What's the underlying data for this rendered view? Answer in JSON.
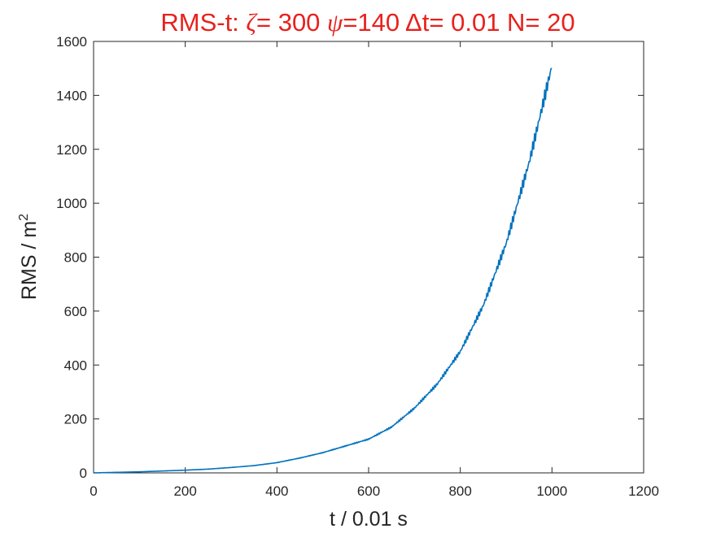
{
  "chart_data": {
    "type": "line",
    "title_parts": [
      {
        "text": "RMS-t:  ",
        "style": "normal"
      },
      {
        "text": "ζ",
        "style": "greek"
      },
      {
        "text": "= 300 ",
        "style": "normal"
      },
      {
        "text": "ψ",
        "style": "greek"
      },
      {
        "text": "=140 ",
        "style": "normal"
      },
      {
        "text": "Δ",
        "style": "normal"
      },
      {
        "text": "t= 0.01 N= 20",
        "style": "normal"
      }
    ],
    "xlabel": "t / 0.01 s",
    "ylabel_base": "RMS / m",
    "ylabel_sup": "2",
    "xlim": [
      0,
      1200
    ],
    "ylim": [
      0,
      1600
    ],
    "xticks": [
      0,
      200,
      400,
      600,
      800,
      1000,
      1200
    ],
    "yticks": [
      0,
      200,
      400,
      600,
      800,
      1000,
      1200,
      1400,
      1600
    ],
    "grid": false,
    "colors": {
      "title": "#e8211d",
      "series": "#0072bd",
      "axes": "#262626"
    },
    "series": [
      {
        "x": [
          0,
          50,
          100,
          150,
          200,
          250,
          300,
          350,
          400,
          450,
          500,
          550,
          600,
          650,
          700,
          750,
          800,
          850,
          900,
          950,
          1000
        ],
        "y": [
          0,
          2,
          4,
          7,
          10,
          14,
          20,
          27,
          38,
          55,
          75,
          100,
          125,
          170,
          240,
          330,
          450,
          620,
          850,
          1150,
          1510
        ]
      }
    ]
  }
}
